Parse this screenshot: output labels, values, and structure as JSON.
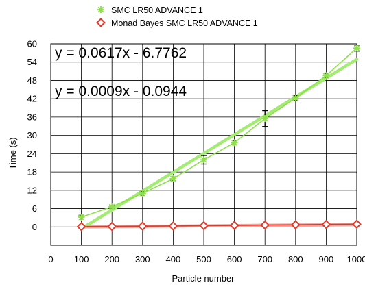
{
  "chart_data": {
    "type": "line",
    "title": "",
    "xlabel": "Particle number",
    "ylabel": "Time (s)",
    "xlim": [
      0,
      1000
    ],
    "ylim": [
      -6,
      60
    ],
    "xticks": [
      0,
      100,
      200,
      300,
      400,
      500,
      600,
      700,
      800,
      900,
      1000
    ],
    "xtick_labels": [
      "0",
      "100",
      "200",
      "300",
      "400",
      "500",
      "600",
      "700",
      "800",
      "900",
      "1000"
    ],
    "yticks": [
      0,
      6,
      12,
      18,
      24,
      30,
      36,
      42,
      48,
      54,
      60
    ],
    "ytick_labels": [
      "0",
      "6",
      "12",
      "18",
      "24",
      "30",
      "36",
      "42",
      "48",
      "54",
      "60"
    ],
    "grid": true,
    "legend_position": "top-center",
    "x": [
      100,
      200,
      300,
      400,
      500,
      600,
      700,
      800,
      900,
      1000
    ],
    "series": [
      {
        "name": "SMC LR50 ADVANCE 1",
        "marker": "asterisk",
        "color": "#8ee04a",
        "values": [
          3.2,
          6.6,
          11.0,
          15.8,
          22.0,
          27.6,
          35.5,
          42.2,
          49.6,
          58.6
        ],
        "errors": [
          0.6,
          0.5,
          0.6,
          0.6,
          1.4,
          0.7,
          2.6,
          0.8,
          0.6,
          1.0
        ],
        "trendline": {
          "slope": 0.0617,
          "intercept": -6.7762,
          "label": "y = 0.0617x - 6.7762"
        }
      },
      {
        "name": "Monad Bayes SMC LR50 ADVANCE 1",
        "marker": "diamond",
        "color": "#e03a2a",
        "values": [
          0.1,
          0.15,
          0.25,
          0.3,
          0.4,
          0.5,
          0.6,
          0.7,
          0.8,
          0.9
        ],
        "errors": [
          0.05,
          0.05,
          0.05,
          0.05,
          0.05,
          0.05,
          0.05,
          0.05,
          0.05,
          0.05
        ],
        "trendline": {
          "slope": 0.0009,
          "intercept": -0.0944,
          "label": "y = 0.0009x - 0.0944"
        }
      }
    ]
  }
}
